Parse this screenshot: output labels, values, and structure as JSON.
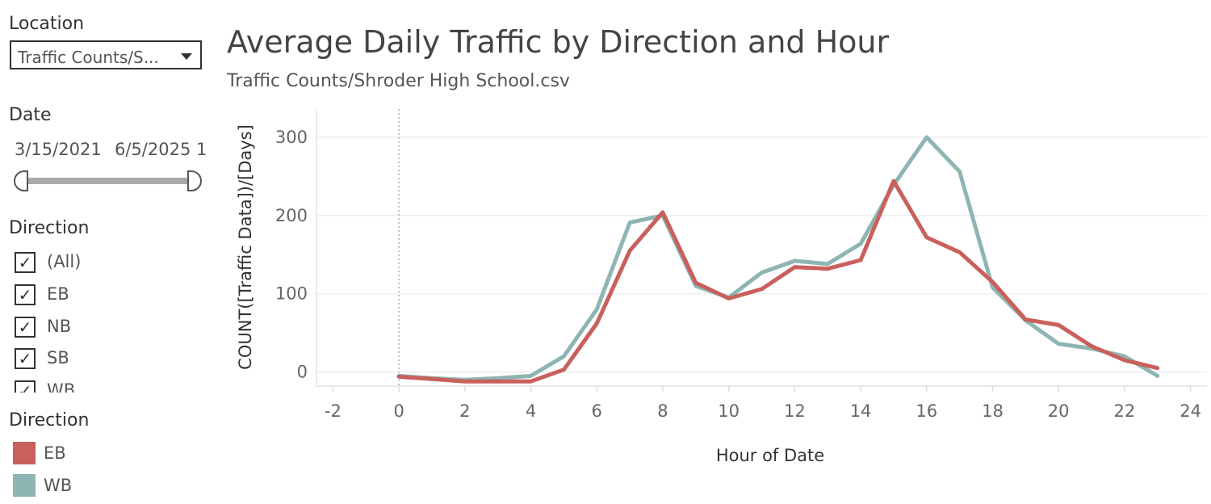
{
  "sidebar": {
    "location": {
      "title": "Location",
      "value": "Traffic Counts/S..."
    },
    "date": {
      "title": "Date",
      "start": "3/15/2021",
      "end": "6/5/2025 1"
    },
    "direction_filter": {
      "title": "Direction",
      "items": [
        {
          "label": "(All)",
          "checked": true
        },
        {
          "label": "EB",
          "checked": true
        },
        {
          "label": "NB",
          "checked": true
        },
        {
          "label": "SB",
          "checked": true
        },
        {
          "label": "WB",
          "checked": true
        }
      ]
    },
    "legend": {
      "title": "Direction",
      "items": [
        {
          "label": "EB",
          "color": "#c9605c"
        },
        {
          "label": "WB",
          "color": "#8fb5b3"
        }
      ]
    }
  },
  "chart_data": {
    "type": "line",
    "title": "Average Daily Traffic by Direction and Hour",
    "subtitle": "Traffic Counts/Shroder High School.csv",
    "xlabel": "Hour of Date",
    "ylabel": "COUNT([Traffic Data])/[Days]",
    "xlim": [
      -2.5,
      24.5
    ],
    "ylim": [
      -18,
      336
    ],
    "x_ticks": [
      -2,
      0,
      2,
      4,
      6,
      8,
      10,
      12,
      14,
      16,
      18,
      20,
      22,
      24
    ],
    "y_ticks": [
      0,
      100,
      200,
      300
    ],
    "reference_line_x": 0,
    "grid": "horizontal",
    "x": [
      0,
      1,
      2,
      3,
      4,
      5,
      6,
      7,
      8,
      9,
      10,
      11,
      12,
      13,
      14,
      15,
      16,
      17,
      18,
      19,
      20,
      21,
      22,
      23
    ],
    "series": [
      {
        "name": "WB",
        "color": "#8fb5b3",
        "values": [
          -5,
          -8,
          -10,
          -8,
          -5,
          20,
          80,
          191,
          200,
          110,
          95,
          127,
          142,
          138,
          164,
          239,
          300,
          256,
          108,
          66,
          36,
          30,
          20,
          -5
        ]
      },
      {
        "name": "EB",
        "color": "#c9605c",
        "values": [
          -6,
          -9,
          -12,
          -12,
          -12,
          3,
          62,
          155,
          204,
          114,
          94,
          106,
          134,
          132,
          143,
          244,
          172,
          153,
          115,
          67,
          60,
          33,
          15,
          5
        ]
      }
    ]
  }
}
